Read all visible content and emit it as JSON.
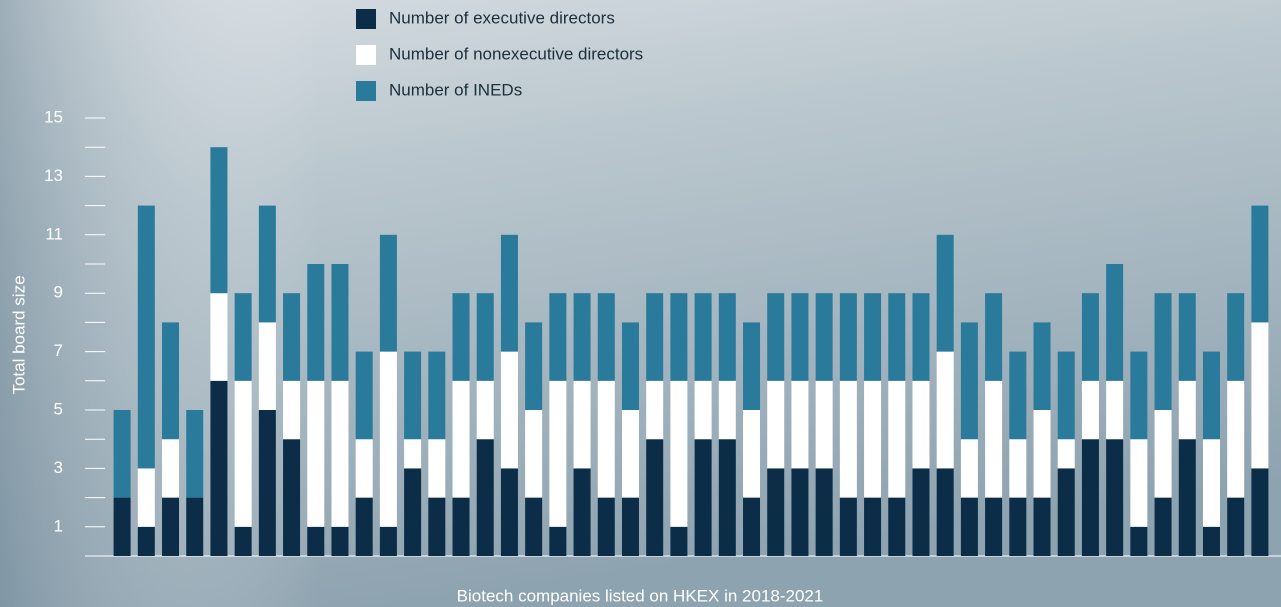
{
  "chart_data": {
    "type": "stacked-bar",
    "xlabel": "Biotech companies listed on HKEX in 2018-2021",
    "ylabel": "Total board size",
    "ylim": [
      0,
      15
    ],
    "yticks": [
      1,
      3,
      5,
      7,
      9,
      11,
      13,
      15
    ],
    "yminorticks": [
      2,
      4,
      6,
      8,
      10,
      12,
      14
    ],
    "categories": [
      null,
      null,
      null,
      null,
      null,
      null,
      null,
      null,
      null,
      null,
      null,
      null,
      null,
      null,
      null,
      null,
      null,
      null,
      null,
      null,
      null,
      null,
      null,
      null,
      null,
      null,
      null,
      null,
      null,
      null,
      null,
      null,
      null,
      null,
      null,
      null,
      null,
      null,
      null,
      null,
      null,
      null,
      null,
      null,
      null,
      null,
      null,
      null
    ],
    "series": [
      {
        "name": "Number of executive directors",
        "color": "#0b2d48",
        "values": [
          2,
          1,
          2,
          2,
          6,
          1,
          5,
          4,
          1,
          1,
          2,
          1,
          3,
          2,
          2,
          4,
          3,
          2,
          1,
          3,
          2,
          2,
          4,
          1,
          4,
          4,
          2,
          3,
          3,
          3,
          2,
          2,
          2,
          3,
          3,
          2,
          2,
          2,
          2,
          3,
          4,
          4,
          1,
          2,
          4,
          1,
          2,
          3
        ]
      },
      {
        "name": "Number of nonexecutive directors",
        "color": "#ffffff",
        "values": [
          0,
          2,
          2,
          0,
          3,
          5,
          3,
          2,
          5,
          5,
          2,
          6,
          1,
          2,
          4,
          2,
          4,
          3,
          5,
          3,
          4,
          3,
          2,
          5,
          2,
          2,
          3,
          3,
          3,
          3,
          4,
          4,
          4,
          3,
          4,
          2,
          4,
          2,
          3,
          1,
          2,
          2,
          3,
          3,
          2,
          3,
          4,
          5
        ]
      },
      {
        "name": "Number of INEDs",
        "color": "#2a7a9b",
        "values": [
          3,
          9,
          4,
          3,
          5,
          3,
          4,
          3,
          4,
          4,
          3,
          4,
          3,
          3,
          3,
          3,
          4,
          3,
          3,
          3,
          3,
          3,
          3,
          3,
          3,
          3,
          3,
          3,
          3,
          3,
          3,
          3,
          3,
          3,
          4,
          4,
          3,
          3,
          3,
          3,
          3,
          4,
          3,
          4,
          3,
          3,
          3,
          4
        ]
      }
    ]
  }
}
